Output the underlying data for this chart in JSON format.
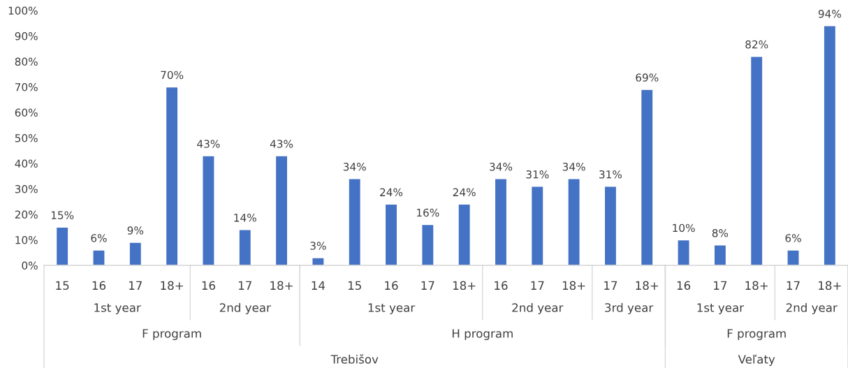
{
  "chart_data": {
    "type": "bar",
    "categories": [
      "15",
      "16",
      "17",
      "18+",
      "16",
      "17",
      "18+",
      "14",
      "15",
      "16",
      "17",
      "18+",
      "16",
      "17",
      "18+",
      "17",
      "18+",
      "16",
      "17",
      "18+",
      "17",
      "18+"
    ],
    "values": [
      15,
      6,
      9,
      70,
      43,
      14,
      43,
      3,
      34,
      24,
      16,
      24,
      34,
      31,
      34,
      31,
      69,
      10,
      8,
      82,
      6,
      94
    ],
    "value_labels": [
      "15%",
      "6%",
      "9%",
      "70%",
      "43%",
      "14%",
      "43%",
      "3%",
      "34%",
      "24%",
      "16%",
      "24%",
      "34%",
      "31%",
      "34%",
      "31%",
      "69%",
      "10%",
      "8%",
      "82%",
      "6%",
      "94%"
    ],
    "color": "#4472c4",
    "ylim": [
      0,
      100
    ],
    "yticks": [
      {
        "value": 0,
        "label": "0%"
      },
      {
        "value": 10,
        "label": "10%"
      },
      {
        "value": 20,
        "label": "20%"
      },
      {
        "value": 30,
        "label": "30%"
      },
      {
        "value": 40,
        "label": "40%"
      },
      {
        "value": 50,
        "label": "50%"
      },
      {
        "value": 60,
        "label": "60%"
      },
      {
        "value": 70,
        "label": "70%"
      },
      {
        "value": 80,
        "label": "80%"
      },
      {
        "value": 90,
        "label": "90%"
      },
      {
        "value": 100,
        "label": "100%"
      }
    ],
    "annotations": [
      "1st year",
      "2nd year",
      "1st year",
      "2nd year",
      "3rd year",
      "1st year",
      "2nd year",
      "F program",
      "H program",
      "F program",
      "Trebišov",
      "Veľaty"
    ]
  }
}
